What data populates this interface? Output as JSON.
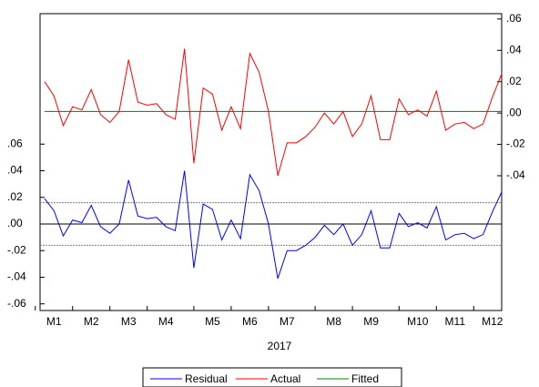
{
  "chart_data": {
    "type": "line",
    "categories": [
      null,
      "M1",
      null,
      null,
      null,
      "M2",
      null,
      null,
      null,
      "M3",
      null,
      null,
      null,
      "M4",
      null,
      null,
      null,
      null,
      "M5",
      null,
      null,
      null,
      "M6",
      null,
      null,
      null,
      "M7",
      null,
      null,
      null,
      null,
      "M8",
      null,
      null,
      null,
      "M9",
      null,
      null,
      null,
      null,
      "M10",
      null,
      null,
      null,
      "M11",
      null,
      null,
      null,
      "M12",
      null
    ],
    "xlabel": "2017",
    "series": [
      {
        "name": "Residual",
        "color": "#0000ff",
        "axis": "y",
        "values": [
          0.019,
          0.01,
          -0.009,
          0.003,
          0.001,
          0.014,
          -0.002,
          -0.007,
          0.0,
          0.033,
          0.006,
          0.004,
          0.005,
          -0.002,
          -0.005,
          0.04,
          -0.033,
          0.015,
          0.011,
          -0.012,
          0.003,
          -0.011,
          0.037,
          0.025,
          0.0,
          -0.041,
          -0.02,
          -0.02,
          -0.016,
          -0.01,
          -0.001,
          -0.008,
          0.0,
          -0.016,
          -0.008,
          0.01,
          -0.018,
          -0.018,
          0.008,
          -0.002,
          0.001,
          -0.003,
          0.013,
          -0.012,
          -0.008,
          -0.007,
          -0.011,
          -0.008,
          0.009,
          0.024
        ]
      },
      {
        "name": "Actual",
        "color": "#ff0000",
        "axis": "y2",
        "values": [
          0.02,
          0.011,
          -0.008,
          0.004,
          0.002,
          0.015,
          -0.001,
          -0.006,
          0.001,
          0.034,
          0.007,
          0.005,
          0.006,
          -0.001,
          -0.004,
          0.041,
          -0.032,
          0.016,
          0.012,
          -0.011,
          0.004,
          -0.01,
          0.038,
          0.026,
          0.001,
          -0.04,
          -0.019,
          -0.019,
          -0.015,
          -0.009,
          0.0,
          -0.007,
          0.001,
          -0.015,
          -0.007,
          0.011,
          -0.017,
          -0.017,
          0.009,
          -0.001,
          0.002,
          -0.002,
          0.014,
          -0.011,
          -0.007,
          -0.006,
          -0.01,
          -0.007,
          0.01,
          0.025
        ]
      },
      {
        "name": "Fitted",
        "color": "#008000",
        "axis": "y2",
        "values": [
          0.001,
          0.001,
          0.001,
          0.001,
          0.001,
          0.001,
          0.001,
          0.001,
          0.001,
          0.001,
          0.001,
          0.001,
          0.001,
          0.001,
          0.001,
          0.001,
          0.001,
          0.001,
          0.001,
          0.001,
          0.001,
          0.001,
          0.001,
          0.001,
          0.001,
          0.001,
          0.001,
          0.001,
          0.001,
          0.001,
          0.001,
          0.001,
          0.001,
          0.001,
          0.001,
          0.001,
          0.001,
          0.001,
          0.001,
          0.001,
          0.001,
          0.001,
          0.001,
          0.001,
          0.001,
          0.001,
          0.001,
          0.001,
          0.001,
          0.001
        ]
      }
    ],
    "ylim": [
      -0.065,
      0.158
    ],
    "yticks": [
      {
        "value": -0.06,
        "label": "-.06"
      },
      {
        "value": -0.04,
        "label": "-.04"
      },
      {
        "value": -0.02,
        "label": "-.02"
      },
      {
        "value": 0,
        "label": ".00"
      },
      {
        "value": 0.02,
        "label": ".02"
      },
      {
        "value": 0.04,
        "label": ".04"
      },
      {
        "value": 0.06,
        "label": ".06"
      }
    ],
    "y2lim": [
      -0.126,
      0.0634
    ],
    "y2ticks": [
      {
        "value": -0.04,
        "label": "-.04"
      },
      {
        "value": -0.02,
        "label": "-.02"
      },
      {
        "value": 0,
        "label": ".00"
      },
      {
        "value": 0.02,
        "label": ".02"
      },
      {
        "value": 0.04,
        "label": ".04"
      },
      {
        "value": 0.06,
        "label": ".06"
      }
    ],
    "reference_lines": [
      {
        "value": 0,
        "color": "#000000",
        "dashed": false
      },
      {
        "value": 0.016,
        "color": "#808080",
        "dashed": true
      },
      {
        "value": -0.016,
        "color": "#808080",
        "dashed": true
      }
    ],
    "legend": "bottom"
  }
}
